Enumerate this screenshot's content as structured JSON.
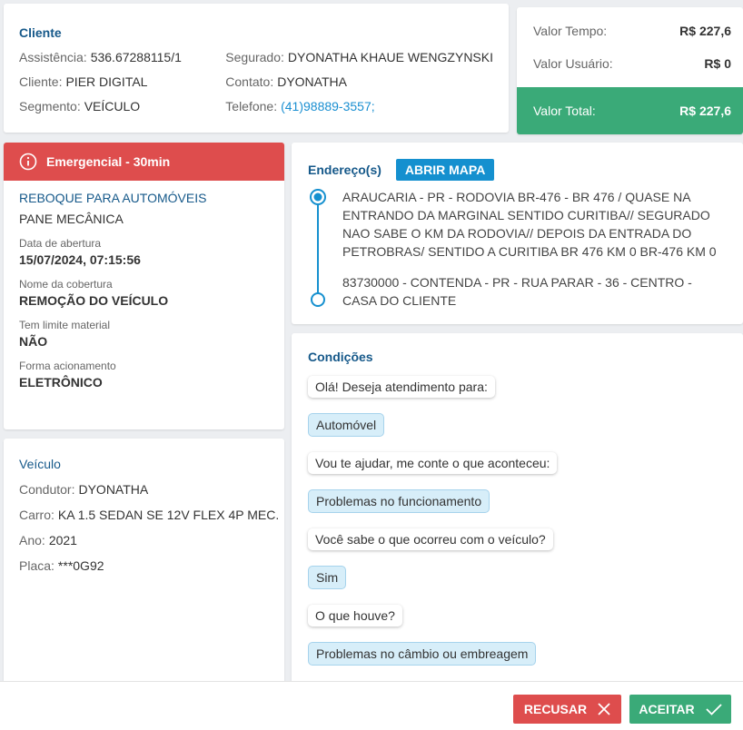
{
  "client": {
    "title": "Cliente",
    "left": [
      {
        "label": "Assistência:",
        "value": "536.67288115/1"
      },
      {
        "label": "Cliente:",
        "value": "PIER DIGITAL"
      },
      {
        "label": "Segmento:",
        "value": "VEÍCULO"
      }
    ],
    "right": [
      {
        "label": "Segurado:",
        "value": "DYONATHA KHAUE WENGZYNSKI"
      },
      {
        "label": "Contato:",
        "value": "DYONATHA"
      },
      {
        "label": "Telefone:",
        "value": "(41)98889-3557;"
      }
    ]
  },
  "values": {
    "rows": [
      {
        "label": "Valor Tempo:",
        "value": "R$ 227,6"
      },
      {
        "label": "Valor Usuário:",
        "value": "R$ 0"
      }
    ],
    "total": {
      "label": "Valor Total:",
      "value": "R$ 227,6"
    }
  },
  "service": {
    "badge": "Emergencial - 30min",
    "title": "REBOQUE PARA AUTOMÓVEIS",
    "subtitle": "PANE MECÂNICA",
    "details": [
      {
        "label": "Data de abertura",
        "value": "15/07/2024, 07:15:56"
      },
      {
        "label": "Nome da cobertura",
        "value": "REMOÇÃO DO VEÍCULO"
      },
      {
        "label": "Tem limite material",
        "value": "NÃO"
      },
      {
        "label": "Forma acionamento",
        "value": "ELETRÔNICO"
      }
    ]
  },
  "vehicle": {
    "title": "Veículo",
    "fields": [
      {
        "label": "Condutor:",
        "value": "DYONATHA"
      },
      {
        "label": "Carro:",
        "value": "KA 1.5 SEDAN SE 12V FLEX 4P MEC."
      },
      {
        "label": "Ano:",
        "value": "2021"
      },
      {
        "label": "Placa:",
        "value": "***0G92"
      }
    ]
  },
  "address": {
    "title": "Endereço(s)",
    "button": "ABRIR MAPA",
    "stops": [
      "ARAUCARIA - PR - RODOVIA BR-476 - BR 476 / QUASE NA ENTRANDO DA MARGINAL SENTIDO CURITIBA// SEGURADO NAO SABE O KM DA RODOVIA// DEPOIS DA ENTRADA DO PETROBRAS/ SENTIDO A CURITIBA BR 476 KM 0 BR-476 KM 0",
      "83730000 - CONTENDA - PR - RUA PARAR - 36 - CENTRO - CASA DO CLIENTE"
    ]
  },
  "conditions": {
    "title": "Condições",
    "dialog": [
      {
        "question": "Olá! Deseja atendimento para:",
        "answer": "Automóvel"
      },
      {
        "question": "Vou te ajudar, me conte o que aconteceu:",
        "answer": "Problemas no funcionamento"
      },
      {
        "question": "Você sabe o que ocorreu com o veículo?",
        "answer": "Sim"
      },
      {
        "question": "O que houve?",
        "answer": "Problemas no câmbio ou embreagem"
      }
    ]
  },
  "actions": {
    "reject": "RECUSAR",
    "accept": "ACEITAR"
  }
}
